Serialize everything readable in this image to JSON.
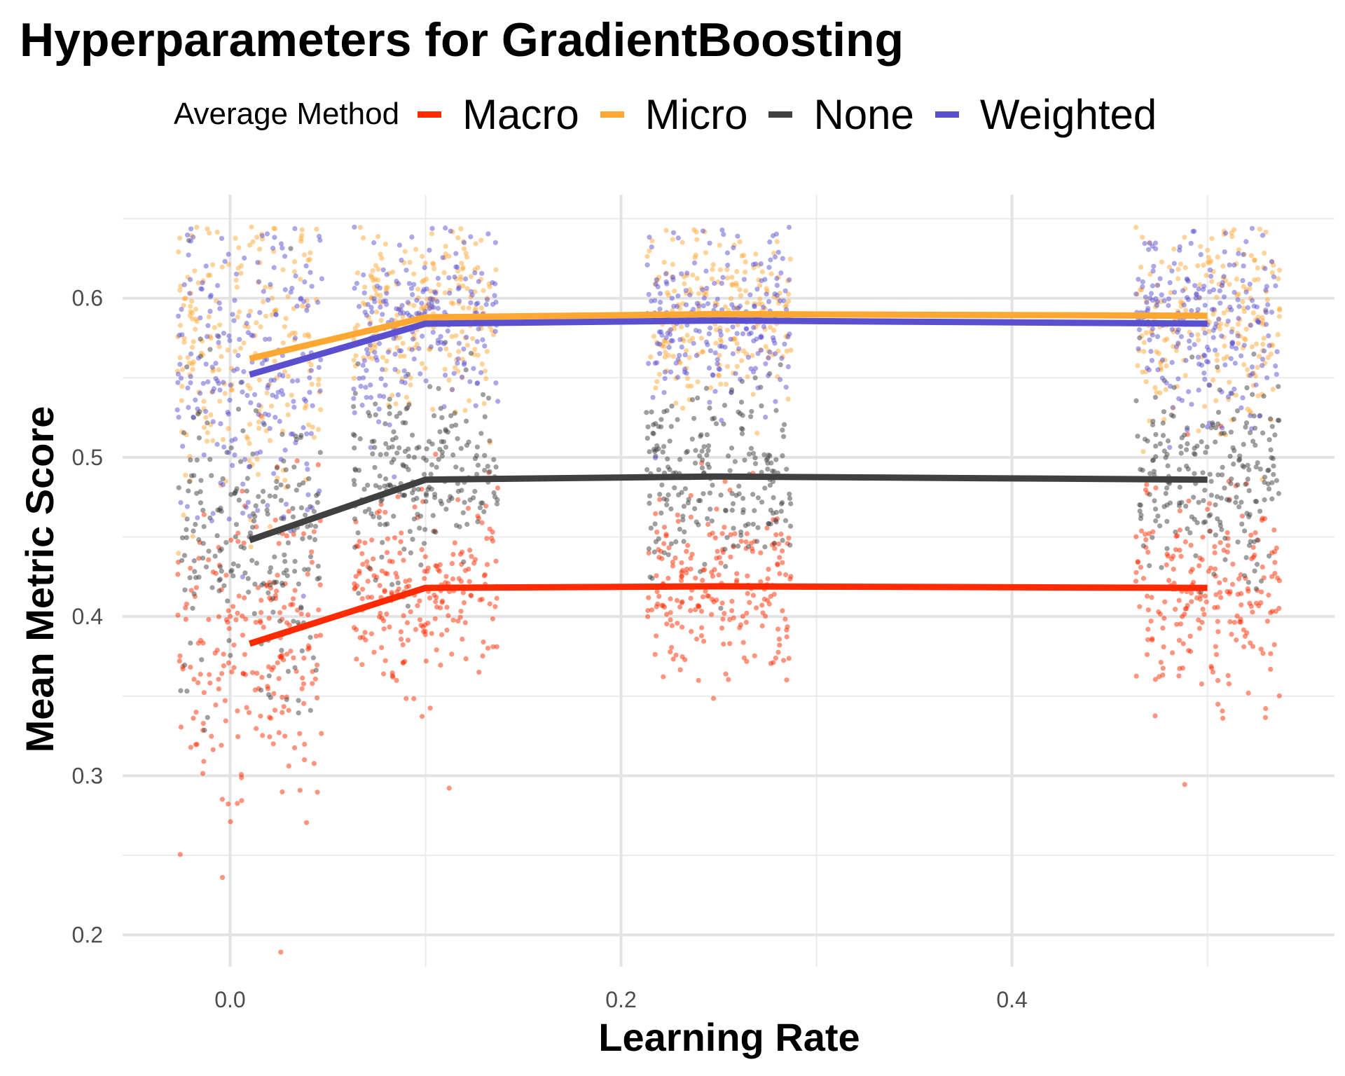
{
  "chart_data": {
    "type": "scatter",
    "title": "Hyperparameters for GradientBoosting",
    "xlabel": "Learning Rate",
    "ylabel": "Mean Metric Score",
    "xlim": [
      -0.055,
      0.565
    ],
    "ylim": [
      0.18,
      0.665
    ],
    "x_ticks": [
      0.0,
      0.2,
      0.4
    ],
    "x_tick_labels": [
      "0.0",
      "0.2",
      "0.4"
    ],
    "y_ticks": [
      0.2,
      0.3,
      0.4,
      0.5,
      0.6
    ],
    "y_tick_labels": [
      "0.2",
      "0.3",
      "0.4",
      "0.5",
      "0.6"
    ],
    "grid": true,
    "legend": {
      "title": "Average Method",
      "position": "top"
    },
    "x": [
      0.01,
      0.1,
      0.25,
      0.5
    ],
    "jitter_width": 0.037,
    "series": [
      {
        "name": "Macro",
        "color": "#ff2a00",
        "values": [
          0.383,
          0.418,
          0.419,
          0.418
        ]
      },
      {
        "name": "Micro",
        "color": "#ffa733",
        "values": [
          0.562,
          0.588,
          0.59,
          0.589
        ]
      },
      {
        "name": "None",
        "color": "#404040",
        "values": [
          0.448,
          0.486,
          0.488,
          0.486
        ]
      },
      {
        "name": "Weighted",
        "color": "#5a4fcf",
        "values": [
          0.552,
          0.584,
          0.586,
          0.584
        ]
      }
    ]
  }
}
